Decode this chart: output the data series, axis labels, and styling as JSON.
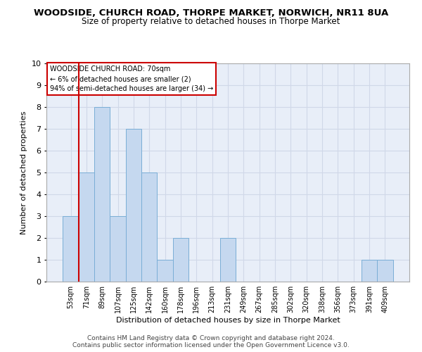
{
  "title": "WOODSIDE, CHURCH ROAD, THORPE MARKET, NORWICH, NR11 8UA",
  "subtitle": "Size of property relative to detached houses in Thorpe Market",
  "xlabel": "Distribution of detached houses by size in Thorpe Market",
  "ylabel": "Number of detached properties",
  "footer_line1": "Contains HM Land Registry data © Crown copyright and database right 2024.",
  "footer_line2": "Contains public sector information licensed under the Open Government Licence v3.0.",
  "categories": [
    "53sqm",
    "71sqm",
    "89sqm",
    "107sqm",
    "125sqm",
    "142sqm",
    "160sqm",
    "178sqm",
    "196sqm",
    "213sqm",
    "231sqm",
    "249sqm",
    "267sqm",
    "285sqm",
    "302sqm",
    "320sqm",
    "338sqm",
    "356sqm",
    "373sqm",
    "391sqm",
    "409sqm"
  ],
  "values": [
    3,
    5,
    8,
    3,
    7,
    5,
    1,
    2,
    0,
    0,
    2,
    0,
    0,
    0,
    0,
    0,
    0,
    0,
    0,
    1,
    1
  ],
  "bar_color": "#c5d8ef",
  "bar_edge_color": "#7aaed6",
  "highlight_line_color": "#cc0000",
  "annotation_box_text": "WOODSIDE CHURCH ROAD: 70sqm\n← 6% of detached houses are smaller (2)\n94% of semi-detached houses are larger (34) →",
  "ylim": [
    0,
    10
  ],
  "yticks": [
    0,
    1,
    2,
    3,
    4,
    5,
    6,
    7,
    8,
    9,
    10
  ],
  "grid_color": "#d0d8e8",
  "background_color": "#ffffff",
  "ax_background": "#e8eef8",
  "title_fontsize": 9.5,
  "subtitle_fontsize": 8.5,
  "xlabel_fontsize": 8,
  "ylabel_fontsize": 8,
  "tick_fontsize": 7,
  "footer_fontsize": 6.5,
  "annotation_fontsize": 7
}
